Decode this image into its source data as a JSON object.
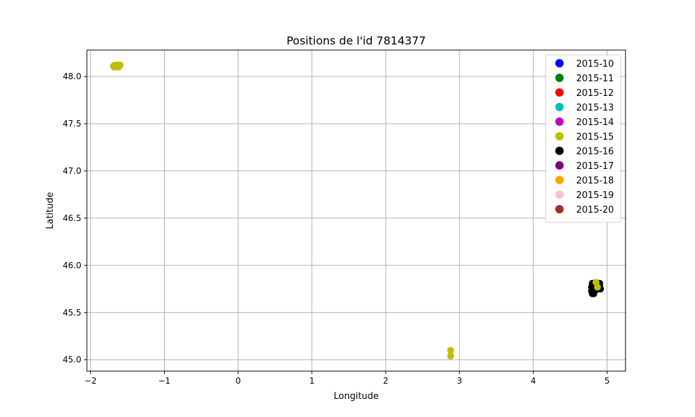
{
  "chart_data": {
    "type": "scatter",
    "title": "Positions de l'id 7814377",
    "xlabel": "Longitude",
    "ylabel": "Latitude",
    "xlim": [
      -2.05,
      5.25
    ],
    "ylim": [
      44.88,
      48.28
    ],
    "xticks": [
      -2,
      -1,
      0,
      1,
      2,
      3,
      4,
      5
    ],
    "xtick_labels": [
      "−2",
      "−1",
      "0",
      "1",
      "2",
      "3",
      "4",
      "5"
    ],
    "yticks": [
      45.0,
      45.5,
      46.0,
      46.5,
      47.0,
      47.5,
      48.0
    ],
    "ytick_labels": [
      "45.0",
      "45.5",
      "46.0",
      "46.5",
      "47.0",
      "47.5",
      "48.0"
    ],
    "grid": true,
    "legend_position": "top-right",
    "series": [
      {
        "name": "2015-10",
        "color": "#0000ff",
        "points": []
      },
      {
        "name": "2015-11",
        "color": "#008000",
        "points": []
      },
      {
        "name": "2015-12",
        "color": "#ff0000",
        "points": []
      },
      {
        "name": "2015-13",
        "color": "#00bfbf",
        "points": []
      },
      {
        "name": "2015-14",
        "color": "#bf00bf",
        "points": []
      },
      {
        "name": "2015-15",
        "color": "#bfbf00",
        "points": [
          [
            -1.69,
            48.11
          ],
          [
            -1.67,
            48.12
          ],
          [
            -1.65,
            48.11
          ],
          [
            -1.63,
            48.12
          ],
          [
            -1.61,
            48.11
          ],
          [
            -1.68,
            48.1
          ],
          [
            -1.66,
            48.1
          ],
          [
            -1.64,
            48.12
          ],
          [
            -1.62,
            48.1
          ],
          [
            -1.6,
            48.12
          ],
          [
            2.88,
            45.1
          ],
          [
            2.88,
            45.04
          ],
          [
            4.85,
            45.82
          ],
          [
            4.87,
            45.77
          ]
        ]
      },
      {
        "name": "2015-16",
        "color": "#000000",
        "points": [
          [
            4.8,
            45.81
          ],
          [
            4.82,
            45.8
          ],
          [
            4.84,
            45.81
          ],
          [
            4.86,
            45.8
          ],
          [
            4.88,
            45.81
          ],
          [
            4.9,
            45.81
          ],
          [
            4.79,
            45.77
          ],
          [
            4.81,
            45.76
          ],
          [
            4.83,
            45.77
          ],
          [
            4.85,
            45.76
          ],
          [
            4.87,
            45.75
          ],
          [
            4.89,
            45.76
          ],
          [
            4.91,
            45.75
          ],
          [
            4.79,
            45.73
          ],
          [
            4.81,
            45.72
          ],
          [
            4.83,
            45.73
          ],
          [
            4.85,
            45.74
          ],
          [
            4.8,
            45.7
          ],
          [
            4.82,
            45.7
          ],
          [
            4.81,
            45.71
          ],
          [
            4.84,
            45.79
          ],
          [
            4.88,
            45.78
          ],
          [
            4.9,
            45.78
          ]
        ]
      },
      {
        "name": "2015-17",
        "color": "#800080",
        "points": []
      },
      {
        "name": "2015-18",
        "color": "#ffa500",
        "points": []
      },
      {
        "name": "2015-19",
        "color": "#ffc0cb",
        "points": []
      },
      {
        "name": "2015-20",
        "color": "#a52a2a",
        "points": []
      }
    ],
    "draw_order": [
      "2015-16",
      "2015-15"
    ]
  }
}
